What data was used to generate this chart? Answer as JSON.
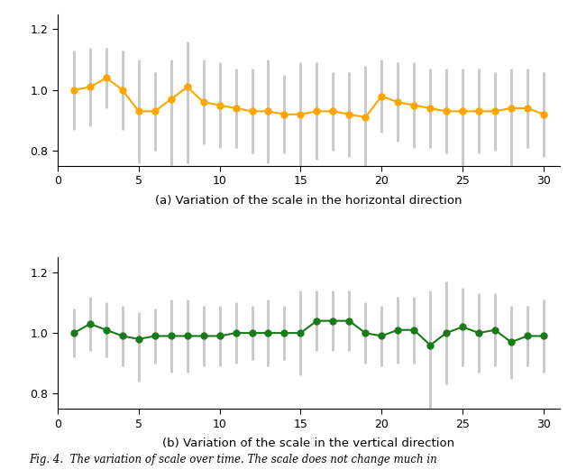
{
  "x": [
    1,
    2,
    3,
    4,
    5,
    6,
    7,
    8,
    9,
    10,
    11,
    12,
    13,
    14,
    15,
    16,
    17,
    18,
    19,
    20,
    21,
    22,
    23,
    24,
    25,
    26,
    27,
    28,
    29,
    30
  ],
  "horizontal_y": [
    1.0,
    1.01,
    1.04,
    1.0,
    0.93,
    0.93,
    0.97,
    1.01,
    0.96,
    0.95,
    0.94,
    0.93,
    0.93,
    0.92,
    0.92,
    0.93,
    0.93,
    0.92,
    0.91,
    0.98,
    0.96,
    0.95,
    0.94,
    0.93,
    0.93,
    0.93,
    0.93,
    0.94,
    0.94,
    0.92
  ],
  "horizontal_err_upper": [
    0.13,
    0.13,
    0.1,
    0.13,
    0.17,
    0.13,
    0.13,
    0.15,
    0.14,
    0.14,
    0.13,
    0.14,
    0.17,
    0.13,
    0.17,
    0.16,
    0.13,
    0.14,
    0.17,
    0.12,
    0.13,
    0.14,
    0.13,
    0.14,
    0.14,
    0.14,
    0.13,
    0.13,
    0.13,
    0.14
  ],
  "horizontal_err_lower": [
    0.13,
    0.13,
    0.1,
    0.13,
    0.17,
    0.13,
    0.23,
    0.25,
    0.14,
    0.14,
    0.13,
    0.14,
    0.17,
    0.13,
    0.27,
    0.16,
    0.13,
    0.14,
    0.17,
    0.12,
    0.13,
    0.14,
    0.13,
    0.14,
    0.24,
    0.14,
    0.13,
    0.23,
    0.13,
    0.14
  ],
  "vertical_y": [
    1.0,
    1.03,
    1.01,
    0.99,
    0.98,
    0.99,
    0.99,
    0.99,
    0.99,
    0.99,
    1.0,
    1.0,
    1.0,
    1.0,
    1.0,
    1.04,
    1.04,
    1.04,
    1.0,
    0.99,
    1.01,
    1.01,
    0.96,
    1.0,
    1.02,
    1.0,
    1.01,
    0.97,
    0.99,
    0.99
  ],
  "vertical_err_upper": [
    0.08,
    0.09,
    0.09,
    0.1,
    0.09,
    0.09,
    0.12,
    0.12,
    0.1,
    0.1,
    0.1,
    0.09,
    0.11,
    0.09,
    0.14,
    0.1,
    0.1,
    0.1,
    0.1,
    0.1,
    0.11,
    0.11,
    0.18,
    0.17,
    0.13,
    0.13,
    0.12,
    0.12,
    0.1,
    0.12
  ],
  "vertical_err_lower": [
    0.08,
    0.09,
    0.09,
    0.1,
    0.14,
    0.09,
    0.12,
    0.12,
    0.1,
    0.1,
    0.1,
    0.09,
    0.11,
    0.09,
    0.14,
    0.1,
    0.1,
    0.1,
    0.1,
    0.1,
    0.11,
    0.11,
    0.21,
    0.17,
    0.13,
    0.13,
    0.12,
    0.12,
    0.1,
    0.12
  ],
  "orange_color": "#FFA500",
  "green_color": "#1a7a1a",
  "errorbar_color": "#c8c8c8",
  "label_a": "(a) Variation of the scale in the horizontal direction",
  "label_b": "(b) Variation of the scale in the vertical direction",
  "fig_label": "Fig. 4.  The variation of scale over time. The scale does not change much in",
  "xlim": [
    0,
    31
  ],
  "ylim": [
    0.75,
    1.25
  ],
  "yticks": [
    0.8,
    1.0,
    1.2
  ],
  "xticks": [
    0,
    5,
    10,
    15,
    20,
    25,
    30
  ]
}
